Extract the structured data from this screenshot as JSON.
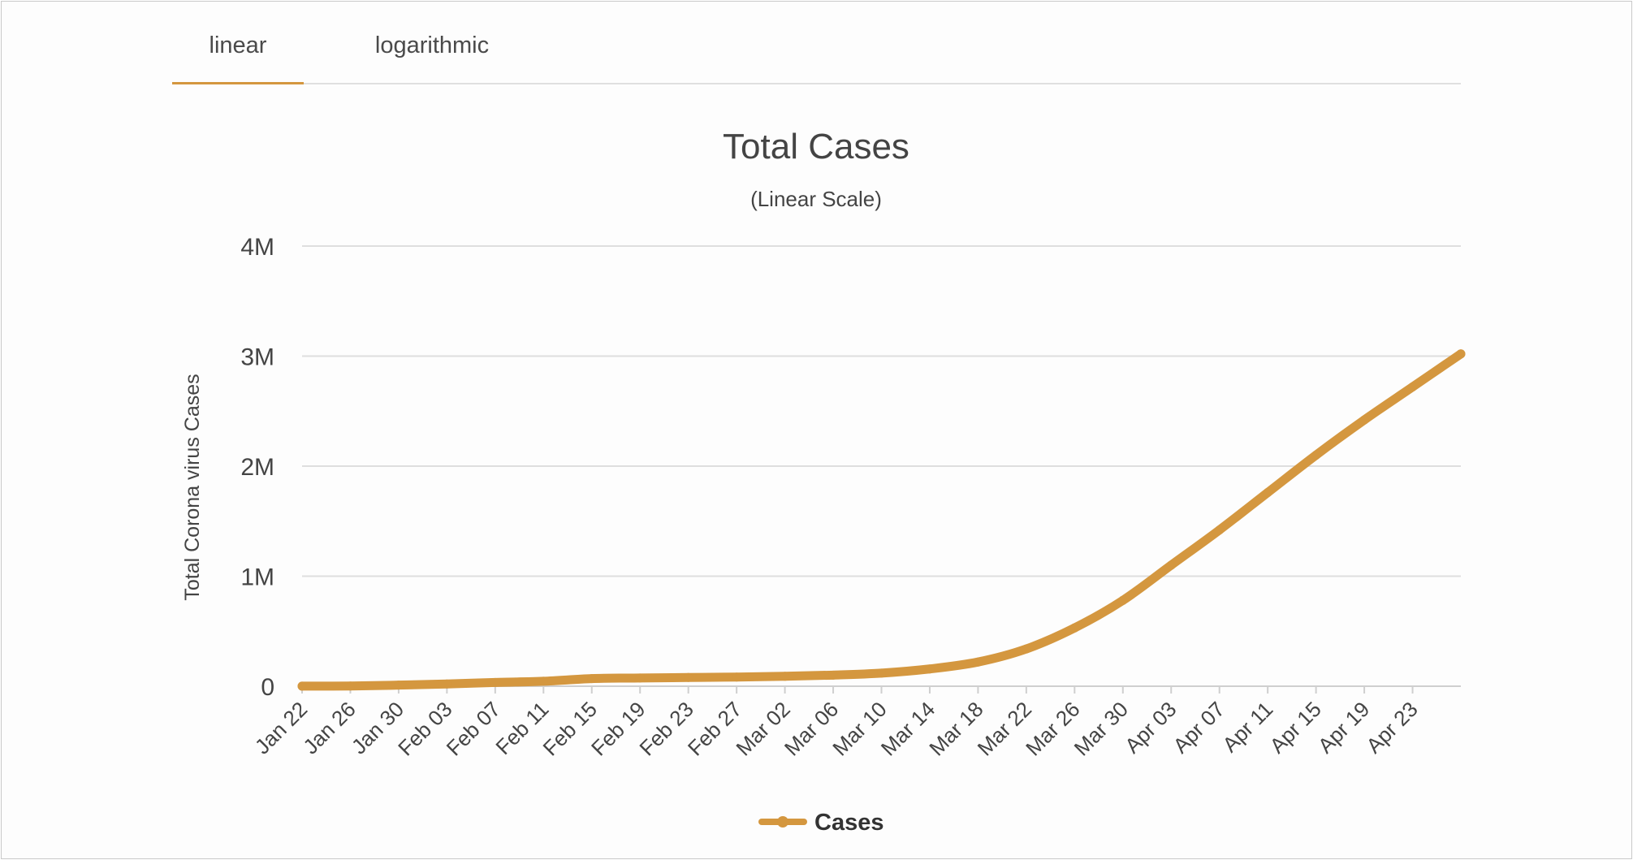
{
  "tabs": [
    {
      "label": "linear",
      "active": true
    },
    {
      "label": "logarithmic",
      "active": false
    }
  ],
  "chart_data": {
    "type": "line",
    "title": "Total Cases",
    "subtitle": "(Linear Scale)",
    "ylabel": "Total Corona virus Cases",
    "xlabel": "",
    "ylim": [
      0,
      4000000
    ],
    "yticks": [
      0,
      1000000,
      2000000,
      3000000,
      4000000
    ],
    "ytick_labels": [
      "0",
      "1M",
      "2M",
      "3M",
      "4M"
    ],
    "x_tick_labels": [
      "Jan 22",
      "Jan 26",
      "Jan 30",
      "Feb 03",
      "Feb 07",
      "Feb 11",
      "Feb 15",
      "Feb 19",
      "Feb 23",
      "Feb 27",
      "Mar 02",
      "Mar 06",
      "Mar 10",
      "Mar 14",
      "Mar 18",
      "Mar 22",
      "Mar 26",
      "Mar 30",
      "Apr 03",
      "Apr 07",
      "Apr 11",
      "Apr 15",
      "Apr 19",
      "Apr 23"
    ],
    "x_range": [
      "Jan 22",
      "Apr 27"
    ],
    "grid": true,
    "legend_position": "bottom-center",
    "color": "#d4973f",
    "series": [
      {
        "name": "Cases",
        "points": [
          {
            "x": "Jan 22",
            "y": 580
          },
          {
            "x": "Jan 26",
            "y": 2100
          },
          {
            "x": "Jan 30",
            "y": 9900
          },
          {
            "x": "Feb 03",
            "y": 20000
          },
          {
            "x": "Feb 07",
            "y": 34000
          },
          {
            "x": "Feb 11",
            "y": 45000
          },
          {
            "x": "Feb 15",
            "y": 69000
          },
          {
            "x": "Feb 19",
            "y": 75000
          },
          {
            "x": "Feb 23",
            "y": 79000
          },
          {
            "x": "Feb 27",
            "y": 83000
          },
          {
            "x": "Mar 02",
            "y": 90000
          },
          {
            "x": "Mar 06",
            "y": 101000
          },
          {
            "x": "Mar 10",
            "y": 119000
          },
          {
            "x": "Mar 14",
            "y": 157000
          },
          {
            "x": "Mar 18",
            "y": 220000
          },
          {
            "x": "Mar 22",
            "y": 339000
          },
          {
            "x": "Mar 26",
            "y": 530000
          },
          {
            "x": "Mar 30",
            "y": 780000
          },
          {
            "x": "Apr 03",
            "y": 1100000
          },
          {
            "x": "Apr 07",
            "y": 1420000
          },
          {
            "x": "Apr 11",
            "y": 1760000
          },
          {
            "x": "Apr 15",
            "y": 2100000
          },
          {
            "x": "Apr 19",
            "y": 2420000
          },
          {
            "x": "Apr 23",
            "y": 2720000
          },
          {
            "x": "Apr 27",
            "y": 3020000
          }
        ]
      }
    ]
  }
}
